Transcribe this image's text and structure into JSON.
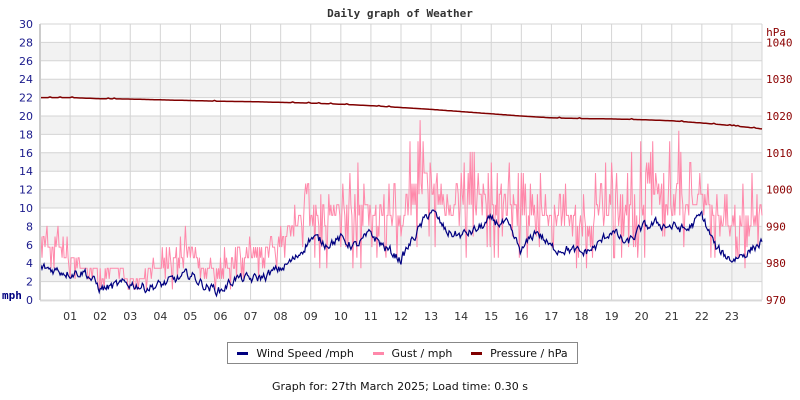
{
  "title": "Daily graph of Weather",
  "footer": "Graph for: 27th March 2025; Load time: 0.30 s",
  "legend": [
    {
      "label": "Wind Speed /mph",
      "color": "#000080"
    },
    {
      "label": "Gust / mph",
      "color": "#ff88aa"
    },
    {
      "label": "Pressure / hPa",
      "color": "#800000"
    }
  ],
  "colors": {
    "wind": "#000080",
    "gust": "#ff88aa",
    "pressure": "#800000",
    "grid": "#d4d4d4",
    "band": "#f2f2f2",
    "left_axis_text": "#1a1a8c",
    "right_axis_text": "#8b0000"
  },
  "chart_data": {
    "type": "line",
    "title": "Daily graph of Weather",
    "xlabel": "",
    "ylabel_left": "mph",
    "ylabel_right": "hPa",
    "x_ticks": [
      "01",
      "02",
      "03",
      "04",
      "05",
      "06",
      "07",
      "08",
      "09",
      "10",
      "11",
      "12",
      "13",
      "14",
      "15",
      "16",
      "17",
      "18",
      "19",
      "20",
      "21",
      "22",
      "23"
    ],
    "x_range_hours": [
      0,
      24
    ],
    "y_left_range": [
      0,
      30
    ],
    "y_left_ticks": [
      0,
      2,
      4,
      6,
      8,
      10,
      12,
      14,
      16,
      18,
      20,
      22,
      24,
      26,
      28,
      30
    ],
    "y_right_range": [
      970,
      1040
    ],
    "y_right_ticks": [
      970,
      980,
      990,
      1000,
      1010,
      1020,
      1030,
      1040
    ],
    "grid": true,
    "legend_position": "bottom",
    "series": [
      {
        "name": "Wind Speed /mph",
        "axis": "left",
        "hourly_x": [
          0,
          0.5,
          1,
          1.5,
          2,
          2.5,
          3,
          3.5,
          4,
          4.5,
          5,
          5.5,
          6,
          6.5,
          7,
          7.5,
          8,
          8.5,
          9,
          9.5,
          10,
          10.5,
          11,
          11.5,
          12,
          12.5,
          13,
          13.5,
          14,
          14.5,
          15,
          15.5,
          16,
          16.5,
          17,
          17.5,
          18,
          18.5,
          19,
          19.5,
          20,
          20.5,
          21,
          21.5,
          22,
          22.5,
          23,
          23.5,
          24
        ],
        "values": [
          3.5,
          3.3,
          3.0,
          3.1,
          1.2,
          1.5,
          1.8,
          1.4,
          1.6,
          2.2,
          2.8,
          1.5,
          1.0,
          2.4,
          2.2,
          2.6,
          3.4,
          4.5,
          6.8,
          6.2,
          6.6,
          5.8,
          7.2,
          5.6,
          4.4,
          7.2,
          9.8,
          7.4,
          7.0,
          7.6,
          8.6,
          8.2,
          5.2,
          7.6,
          5.6,
          5.6,
          5.0,
          5.8,
          7.6,
          6.0,
          7.8,
          8.3,
          8.0,
          7.6,
          9.2,
          5.4,
          4.4,
          5.2,
          6.3
        ]
      },
      {
        "name": "Gust / mph",
        "axis": "left",
        "hourly_x": [
          0,
          0.5,
          1,
          1.5,
          2,
          2.5,
          3,
          3.5,
          4,
          4.5,
          5,
          5.5,
          6,
          6.5,
          7,
          7.5,
          8,
          8.5,
          9,
          9.5,
          10,
          10.5,
          11,
          11.5,
          12,
          12.5,
          13,
          13.5,
          14,
          14.5,
          15,
          15.5,
          16,
          16.5,
          17,
          17.5,
          18,
          18.5,
          19,
          19.5,
          20,
          20.5,
          21,
          21.5,
          22,
          22.5,
          23,
          23.5,
          24
        ],
        "values_peak": [
          9.3,
          8.1,
          7.0,
          4.5,
          4.6,
          4.6,
          3.5,
          4.6,
          5.8,
          7.0,
          9.3,
          5.8,
          4.6,
          8.1,
          8.1,
          8.1,
          9.3,
          11.6,
          13.9,
          11.6,
          12.8,
          16.2,
          13.9,
          13.9,
          12.8,
          19.7,
          18.5,
          15.1,
          15.1,
          17.4,
          15.1,
          16.2,
          13.9,
          15.1,
          12.8,
          12.8,
          11.6,
          13.9,
          16.2,
          15.1,
          17.4,
          18.5,
          19.7,
          16.2,
          16.2,
          12.8,
          11.6,
          13.9,
          15.1
        ],
        "values_typical": [
          5.8,
          5.8,
          3.5,
          3.5,
          2.3,
          3.5,
          2.3,
          2.3,
          3.5,
          3.5,
          4.6,
          3.5,
          2.3,
          3.5,
          4.6,
          4.6,
          5.8,
          8.1,
          9.3,
          8.1,
          9.3,
          8.1,
          9.3,
          8.1,
          8.1,
          11.6,
          11.6,
          9.3,
          9.3,
          10.4,
          11.6,
          10.4,
          8.1,
          9.3,
          8.1,
          8.1,
          7.0,
          8.1,
          10.4,
          8.1,
          10.4,
          10.4,
          10.4,
          9.3,
          10.4,
          8.1,
          7.0,
          8.1,
          9.3
        ]
      },
      {
        "name": "Pressure / hPa",
        "axis": "right",
        "hourly_x": [
          0,
          1,
          2,
          3,
          4,
          5,
          6,
          7,
          8,
          9,
          10,
          11,
          12,
          13,
          14,
          15,
          16,
          17,
          18,
          19,
          20,
          21,
          22,
          23,
          24
        ],
        "values": [
          1025.0,
          1025.0,
          1024.7,
          1024.6,
          1024.4,
          1024.2,
          1024.0,
          1023.9,
          1023.7,
          1023.5,
          1023.2,
          1022.8,
          1022.3,
          1021.8,
          1021.2,
          1020.6,
          1020.0,
          1019.5,
          1019.3,
          1019.2,
          1019.0,
          1018.7,
          1018.1,
          1017.4,
          1016.5
        ]
      }
    ]
  }
}
